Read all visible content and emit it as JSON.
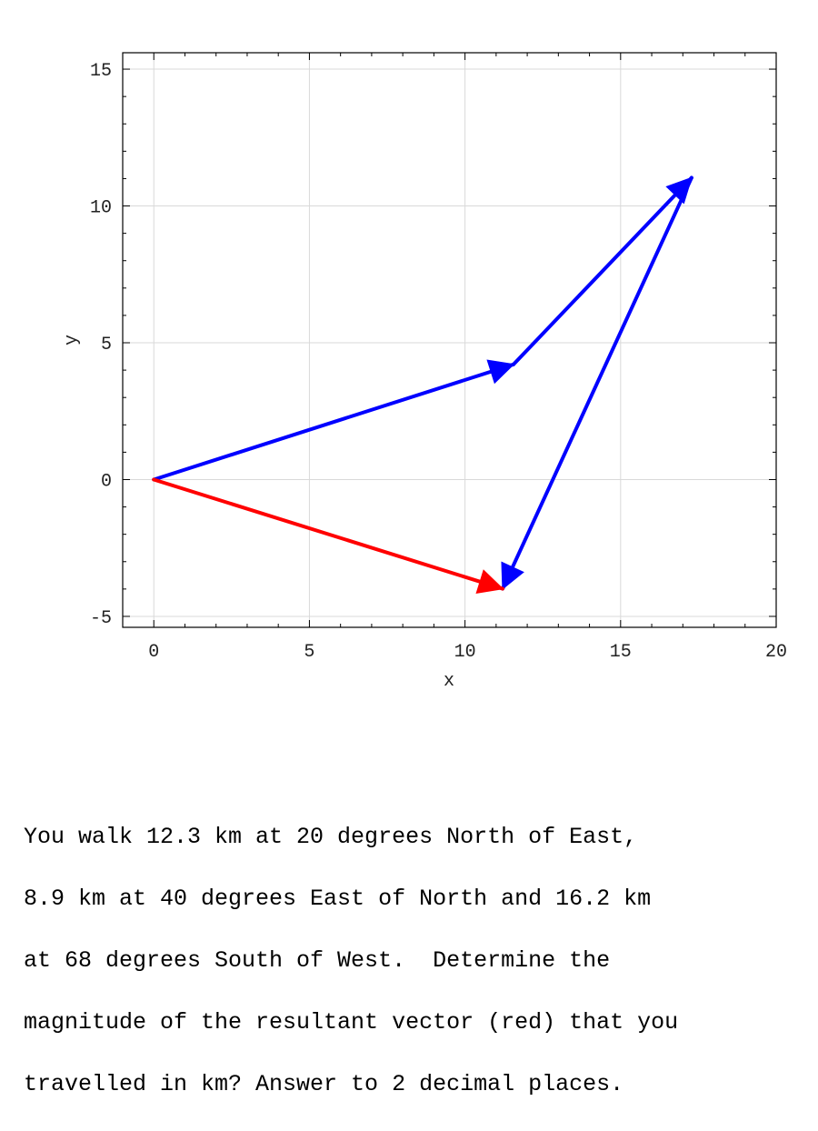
{
  "chart_data": {
    "type": "vector-diagram",
    "xlabel": "x",
    "ylabel": "y",
    "xlim": [
      -1,
      20
    ],
    "ylim": [
      -5.4,
      15.6
    ],
    "xticks": [
      0,
      5,
      10,
      15,
      20
    ],
    "yticks": [
      -5,
      0,
      5,
      10,
      15
    ],
    "xtick_labels": [
      "0",
      "5",
      "10",
      "15",
      "20"
    ],
    "ytick_labels": [
      "-5",
      "0",
      "5",
      "10",
      "15"
    ],
    "grid": true,
    "vectors": [
      {
        "from": [
          0,
          0
        ],
        "to": [
          11.56,
          4.21
        ],
        "color": "#0000ff"
      },
      {
        "from": [
          11.56,
          4.21
        ],
        "to": [
          17.28,
          11.03
        ],
        "color": "#0000ff"
      },
      {
        "from": [
          17.28,
          11.03
        ],
        "to": [
          11.21,
          -3.99
        ],
        "color": "#0000ff"
      },
      {
        "from": [
          0,
          0
        ],
        "to": [
          11.21,
          -3.99
        ],
        "color": "#ff0000"
      }
    ]
  },
  "question": {
    "lines": [
      "You walk 12.3 km at 20 degrees North of East,",
      "8.9 km at 40 degrees East of North and 16.2 km",
      "at 68 degrees South of West.  Determine the",
      "magnitude of the resultant vector (red) that you",
      "travelled in km? Answer to 2 decimal places."
    ]
  }
}
